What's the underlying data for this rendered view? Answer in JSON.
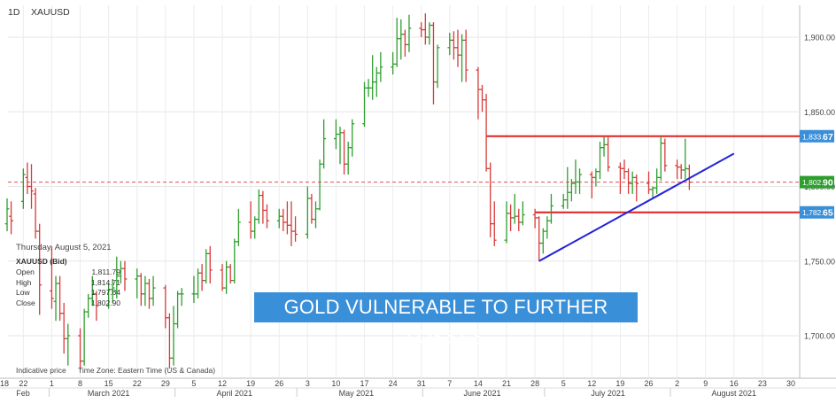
{
  "header": {
    "interval": "1D",
    "symbol": "XAUUSD"
  },
  "hover_info": {
    "date": "Thursday, August 5, 2021",
    "instrument": "XAUUSD (Bid)",
    "rows": [
      {
        "label": "Open",
        "value": "1,811.79"
      },
      {
        "label": "High",
        "value": "1,814.71"
      },
      {
        "label": "Low",
        "value": "1,797.64"
      },
      {
        "label": "Close",
        "value": "1,802.90"
      }
    ]
  },
  "footer": {
    "indicative": "Indicative price",
    "timezone": "Time Zone: Eastern Time (US & Canada)"
  },
  "banner": {
    "text": "GOLD VULNERABLE TO FURTHER LOSSES"
  },
  "colors": {
    "up": "#2e9e2e",
    "down": "#d83a3a",
    "resistance": "#e02020",
    "trendline": "#2323d8",
    "price_box": "#3a8fd9",
    "close_box": "#2e9e2e",
    "banner": "#3a8fd9"
  },
  "chart_data": {
    "type": "ohlc",
    "ylim": [
      1675,
      1925
    ],
    "y_ticks": [
      "1,700.00",
      "1,750.00",
      "1,800.00",
      "1,850.00",
      "1,900.00"
    ],
    "y_tick_values": [
      1700,
      1750,
      1800,
      1850,
      1900
    ],
    "x_day_labels": [
      "18",
      "22",
      "1",
      "8",
      "15",
      "22",
      "29",
      "5",
      "12",
      "19",
      "26",
      "3",
      "10",
      "17",
      "24",
      "31",
      "7",
      "14",
      "21",
      "28",
      "5",
      "12",
      "19",
      "26",
      "2",
      "9",
      "16",
      "23",
      "30"
    ],
    "x_month_labels": [
      "Feb",
      "March 2021",
      "April 2021",
      "May 2021",
      "June 2021",
      "July 2021",
      "August 2021"
    ],
    "price_labels": [
      {
        "main": "1,833.",
        "tail": "67",
        "value": 1833.67,
        "kind": "resistance"
      },
      {
        "main": "1,802.",
        "tail": "90",
        "value": 1802.9,
        "kind": "close"
      },
      {
        "main": "1,782.",
        "tail": "65",
        "value": 1782.65,
        "kind": "support"
      }
    ],
    "horizontal_levels": [
      1833.67,
      1782.65
    ],
    "current_close": 1802.9,
    "trendline": {
      "from": [
        "2021-06-29",
        1750
      ],
      "to": [
        "2021-08-16",
        1822
      ]
    },
    "bars": [
      {
        "date": "2021-02-18",
        "o": 1775,
        "h": 1792,
        "l": 1770,
        "c": 1785
      },
      {
        "date": "2021-02-19",
        "o": 1780,
        "h": 1790,
        "l": 1768,
        "c": 1777
      },
      {
        "date": "2021-02-22",
        "o": 1790,
        "h": 1812,
        "l": 1785,
        "c": 1808
      },
      {
        "date": "2021-02-23",
        "o": 1806,
        "h": 1816,
        "l": 1795,
        "c": 1800
      },
      {
        "date": "2021-02-24",
        "o": 1800,
        "h": 1815,
        "l": 1785,
        "c": 1797
      },
      {
        "date": "2021-02-25",
        "o": 1795,
        "h": 1799,
        "l": 1765,
        "c": 1770
      },
      {
        "date": "2021-02-26",
        "o": 1770,
        "h": 1775,
        "l": 1714,
        "c": 1734
      },
      {
        "date": "2021-03-01",
        "o": 1730,
        "h": 1760,
        "l": 1718,
        "c": 1725
      },
      {
        "date": "2021-03-02",
        "o": 1723,
        "h": 1740,
        "l": 1710,
        "c": 1735
      },
      {
        "date": "2021-03-03",
        "o": 1735,
        "h": 1740,
        "l": 1710,
        "c": 1715
      },
      {
        "date": "2021-03-04",
        "o": 1715,
        "h": 1722,
        "l": 1688,
        "c": 1698
      },
      {
        "date": "2021-03-05",
        "o": 1698,
        "h": 1708,
        "l": 1680,
        "c": 1700
      },
      {
        "date": "2021-03-08",
        "o": 1700,
        "h": 1705,
        "l": 1677,
        "c": 1683
      },
      {
        "date": "2021-03-09",
        "o": 1683,
        "h": 1718,
        "l": 1680,
        "c": 1716
      },
      {
        "date": "2021-03-10",
        "o": 1716,
        "h": 1728,
        "l": 1712,
        "c": 1725
      },
      {
        "date": "2021-03-11",
        "o": 1725,
        "h": 1740,
        "l": 1720,
        "c": 1728
      },
      {
        "date": "2021-03-12",
        "o": 1728,
        "h": 1730,
        "l": 1710,
        "c": 1720
      },
      {
        "date": "2021-03-15",
        "o": 1720,
        "h": 1735,
        "l": 1718,
        "c": 1731
      },
      {
        "date": "2021-03-16",
        "o": 1731,
        "h": 1738,
        "l": 1722,
        "c": 1732
      },
      {
        "date": "2021-03-17",
        "o": 1730,
        "h": 1753,
        "l": 1725,
        "c": 1740
      },
      {
        "date": "2021-03-18",
        "o": 1740,
        "h": 1750,
        "l": 1735,
        "c": 1745
      },
      {
        "date": "2021-03-19",
        "o": 1745,
        "h": 1750,
        "l": 1730,
        "c": 1738
      },
      {
        "date": "2021-03-22",
        "o": 1738,
        "h": 1745,
        "l": 1725,
        "c": 1740
      },
      {
        "date": "2021-03-23",
        "o": 1740,
        "h": 1742,
        "l": 1720,
        "c": 1728
      },
      {
        "date": "2021-03-24",
        "o": 1728,
        "h": 1740,
        "l": 1720,
        "c": 1735
      },
      {
        "date": "2021-03-25",
        "o": 1735,
        "h": 1738,
        "l": 1718,
        "c": 1725
      },
      {
        "date": "2021-03-26",
        "o": 1725,
        "h": 1740,
        "l": 1720,
        "c": 1732
      },
      {
        "date": "2021-03-29",
        "o": 1732,
        "h": 1734,
        "l": 1705,
        "c": 1712
      },
      {
        "date": "2021-03-30",
        "o": 1712,
        "h": 1715,
        "l": 1678,
        "c": 1685
      },
      {
        "date": "2021-03-31",
        "o": 1685,
        "h": 1720,
        "l": 1680,
        "c": 1708
      },
      {
        "date": "2021-04-01",
        "o": 1708,
        "h": 1730,
        "l": 1705,
        "c": 1728
      },
      {
        "date": "2021-04-02",
        "o": 1728,
        "h": 1732,
        "l": 1720,
        "c": 1728
      },
      {
        "date": "2021-04-05",
        "o": 1728,
        "h": 1740,
        "l": 1722,
        "c": 1728
      },
      {
        "date": "2021-04-06",
        "o": 1728,
        "h": 1745,
        "l": 1725,
        "c": 1742
      },
      {
        "date": "2021-04-07",
        "o": 1742,
        "h": 1748,
        "l": 1730,
        "c": 1737
      },
      {
        "date": "2021-04-08",
        "o": 1737,
        "h": 1758,
        "l": 1735,
        "c": 1755
      },
      {
        "date": "2021-04-09",
        "o": 1755,
        "h": 1760,
        "l": 1735,
        "c": 1744
      },
      {
        "date": "2021-04-12",
        "o": 1744,
        "h": 1748,
        "l": 1730,
        "c": 1732
      },
      {
        "date": "2021-04-13",
        "o": 1732,
        "h": 1750,
        "l": 1728,
        "c": 1746
      },
      {
        "date": "2021-04-14",
        "o": 1746,
        "h": 1748,
        "l": 1735,
        "c": 1737
      },
      {
        "date": "2021-04-15",
        "o": 1737,
        "h": 1765,
        "l": 1735,
        "c": 1763
      },
      {
        "date": "2021-04-16",
        "o": 1763,
        "h": 1785,
        "l": 1760,
        "c": 1776
      },
      {
        "date": "2021-04-19",
        "o": 1776,
        "h": 1790,
        "l": 1765,
        "c": 1770
      },
      {
        "date": "2021-04-20",
        "o": 1770,
        "h": 1780,
        "l": 1765,
        "c": 1778
      },
      {
        "date": "2021-04-21",
        "o": 1778,
        "h": 1798,
        "l": 1775,
        "c": 1794
      },
      {
        "date": "2021-04-22",
        "o": 1794,
        "h": 1797,
        "l": 1775,
        "c": 1784
      },
      {
        "date": "2021-04-23",
        "o": 1784,
        "h": 1788,
        "l": 1772,
        "c": 1777
      },
      {
        "date": "2021-04-26",
        "o": 1777,
        "h": 1785,
        "l": 1772,
        "c": 1780
      },
      {
        "date": "2021-04-27",
        "o": 1780,
        "h": 1785,
        "l": 1770,
        "c": 1776
      },
      {
        "date": "2021-04-28",
        "o": 1776,
        "h": 1790,
        "l": 1768,
        "c": 1774
      },
      {
        "date": "2021-04-29",
        "o": 1774,
        "h": 1790,
        "l": 1760,
        "c": 1770
      },
      {
        "date": "2021-04-30",
        "o": 1770,
        "h": 1780,
        "l": 1763,
        "c": 1768
      },
      {
        "date": "2021-05-03",
        "o": 1768,
        "h": 1800,
        "l": 1765,
        "c": 1792
      },
      {
        "date": "2021-05-04",
        "o": 1792,
        "h": 1795,
        "l": 1775,
        "c": 1778
      },
      {
        "date": "2021-05-05",
        "o": 1778,
        "h": 1790,
        "l": 1772,
        "c": 1785
      },
      {
        "date": "2021-05-06",
        "o": 1785,
        "h": 1818,
        "l": 1784,
        "c": 1815
      },
      {
        "date": "2021-05-07",
        "o": 1815,
        "h": 1845,
        "l": 1812,
        "c": 1832
      },
      {
        "date": "2021-05-10",
        "o": 1832,
        "h": 1845,
        "l": 1825,
        "c": 1835
      },
      {
        "date": "2021-05-11",
        "o": 1835,
        "h": 1840,
        "l": 1815,
        "c": 1836
      },
      {
        "date": "2021-05-12",
        "o": 1836,
        "h": 1838,
        "l": 1808,
        "c": 1815
      },
      {
        "date": "2021-05-13",
        "o": 1815,
        "h": 1830,
        "l": 1808,
        "c": 1826
      },
      {
        "date": "2021-05-14",
        "o": 1826,
        "h": 1845,
        "l": 1820,
        "c": 1842
      },
      {
        "date": "2021-05-17",
        "o": 1842,
        "h": 1870,
        "l": 1840,
        "c": 1866
      },
      {
        "date": "2021-05-18",
        "o": 1866,
        "h": 1872,
        "l": 1860,
        "c": 1866
      },
      {
        "date": "2021-05-19",
        "o": 1866,
        "h": 1888,
        "l": 1858,
        "c": 1870
      },
      {
        "date": "2021-05-20",
        "o": 1870,
        "h": 1880,
        "l": 1860,
        "c": 1876
      },
      {
        "date": "2021-05-21",
        "o": 1876,
        "h": 1890,
        "l": 1870,
        "c": 1880
      },
      {
        "date": "2021-05-24",
        "o": 1880,
        "h": 1890,
        "l": 1875,
        "c": 1882
      },
      {
        "date": "2021-05-25",
        "o": 1882,
        "h": 1913,
        "l": 1880,
        "c": 1899
      },
      {
        "date": "2021-05-26",
        "o": 1899,
        "h": 1912,
        "l": 1885,
        "c": 1902
      },
      {
        "date": "2021-05-27",
        "o": 1902,
        "h": 1905,
        "l": 1887,
        "c": 1895
      },
      {
        "date": "2021-05-28",
        "o": 1895,
        "h": 1915,
        "l": 1890,
        "c": 1906
      },
      {
        "date": "2021-05-31",
        "o": 1906,
        "h": 1910,
        "l": 1900,
        "c": 1905
      },
      {
        "date": "2021-06-01",
        "o": 1905,
        "h": 1916,
        "l": 1895,
        "c": 1900
      },
      {
        "date": "2021-06-02",
        "o": 1900,
        "h": 1910,
        "l": 1895,
        "c": 1908
      },
      {
        "date": "2021-06-03",
        "o": 1908,
        "h": 1910,
        "l": 1855,
        "c": 1870
      },
      {
        "date": "2021-06-04",
        "o": 1870,
        "h": 1895,
        "l": 1866,
        "c": 1893
      },
      {
        "date": "2021-06-07",
        "o": 1893,
        "h": 1903,
        "l": 1888,
        "c": 1898
      },
      {
        "date": "2021-06-08",
        "o": 1898,
        "h": 1904,
        "l": 1885,
        "c": 1893
      },
      {
        "date": "2021-06-09",
        "o": 1893,
        "h": 1905,
        "l": 1880,
        "c": 1888
      },
      {
        "date": "2021-06-10",
        "o": 1888,
        "h": 1902,
        "l": 1870,
        "c": 1898
      },
      {
        "date": "2021-06-11",
        "o": 1898,
        "h": 1905,
        "l": 1870,
        "c": 1878
      },
      {
        "date": "2021-06-14",
        "o": 1878,
        "h": 1880,
        "l": 1845,
        "c": 1865
      },
      {
        "date": "2021-06-15",
        "o": 1865,
        "h": 1868,
        "l": 1850,
        "c": 1858
      },
      {
        "date": "2021-06-16",
        "o": 1858,
        "h": 1862,
        "l": 1810,
        "c": 1812
      },
      {
        "date": "2021-06-17",
        "o": 1812,
        "h": 1816,
        "l": 1766,
        "c": 1775
      },
      {
        "date": "2021-06-18",
        "o": 1775,
        "h": 1790,
        "l": 1760,
        "c": 1764
      },
      {
        "date": "2021-06-21",
        "o": 1764,
        "h": 1790,
        "l": 1762,
        "c": 1782
      },
      {
        "date": "2021-06-22",
        "o": 1782,
        "h": 1788,
        "l": 1770,
        "c": 1779
      },
      {
        "date": "2021-06-23",
        "o": 1779,
        "h": 1795,
        "l": 1775,
        "c": 1780
      },
      {
        "date": "2021-06-24",
        "o": 1780,
        "h": 1785,
        "l": 1770,
        "c": 1776
      },
      {
        "date": "2021-06-25",
        "o": 1776,
        "h": 1790,
        "l": 1774,
        "c": 1781
      },
      {
        "date": "2021-06-28",
        "o": 1781,
        "h": 1785,
        "l": 1772,
        "c": 1779
      },
      {
        "date": "2021-06-29",
        "o": 1779,
        "h": 1780,
        "l": 1750,
        "c": 1762
      },
      {
        "date": "2021-06-30",
        "o": 1762,
        "h": 1772,
        "l": 1755,
        "c": 1770
      },
      {
        "date": "2021-07-01",
        "o": 1770,
        "h": 1780,
        "l": 1765,
        "c": 1777
      },
      {
        "date": "2021-07-02",
        "o": 1777,
        "h": 1795,
        "l": 1775,
        "c": 1787
      },
      {
        "date": "2021-07-05",
        "o": 1787,
        "h": 1795,
        "l": 1785,
        "c": 1791
      },
      {
        "date": "2021-07-06",
        "o": 1791,
        "h": 1813,
        "l": 1785,
        "c": 1796
      },
      {
        "date": "2021-07-07",
        "o": 1796,
        "h": 1805,
        "l": 1790,
        "c": 1802
      },
      {
        "date": "2021-07-08",
        "o": 1802,
        "h": 1818,
        "l": 1795,
        "c": 1803
      },
      {
        "date": "2021-07-09",
        "o": 1803,
        "h": 1812,
        "l": 1795,
        "c": 1808
      },
      {
        "date": "2021-07-12",
        "o": 1808,
        "h": 1810,
        "l": 1792,
        "c": 1806
      },
      {
        "date": "2021-07-13",
        "o": 1806,
        "h": 1812,
        "l": 1800,
        "c": 1810
      },
      {
        "date": "2021-07-14",
        "o": 1810,
        "h": 1830,
        "l": 1805,
        "c": 1826
      },
      {
        "date": "2021-07-15",
        "o": 1826,
        "h": 1833,
        "l": 1820,
        "c": 1828
      },
      {
        "date": "2021-07-16",
        "o": 1828,
        "h": 1833,
        "l": 1810,
        "c": 1813
      },
      {
        "date": "2021-07-19",
        "o": 1813,
        "h": 1816,
        "l": 1795,
        "c": 1812
      },
      {
        "date": "2021-07-20",
        "o": 1812,
        "h": 1818,
        "l": 1805,
        "c": 1810
      },
      {
        "date": "2021-07-21",
        "o": 1810,
        "h": 1812,
        "l": 1795,
        "c": 1802
      },
      {
        "date": "2021-07-22",
        "o": 1802,
        "h": 1810,
        "l": 1795,
        "c": 1806
      },
      {
        "date": "2021-07-23",
        "o": 1806,
        "h": 1808,
        "l": 1790,
        "c": 1802
      },
      {
        "date": "2021-07-26",
        "o": 1802,
        "h": 1810,
        "l": 1795,
        "c": 1798
      },
      {
        "date": "2021-07-27",
        "o": 1798,
        "h": 1800,
        "l": 1792,
        "c": 1799
      },
      {
        "date": "2021-07-28",
        "o": 1799,
        "h": 1812,
        "l": 1795,
        "c": 1806
      },
      {
        "date": "2021-07-29",
        "o": 1806,
        "h": 1833,
        "l": 1804,
        "c": 1829
      },
      {
        "date": "2021-07-30",
        "o": 1829,
        "h": 1832,
        "l": 1810,
        "c": 1814
      },
      {
        "date": "2021-08-02",
        "o": 1814,
        "h": 1818,
        "l": 1805,
        "c": 1813
      },
      {
        "date": "2021-08-03",
        "o": 1813,
        "h": 1815,
        "l": 1805,
        "c": 1811
      },
      {
        "date": "2021-08-04",
        "o": 1811,
        "h": 1832,
        "l": 1805,
        "c": 1812
      },
      {
        "date": "2021-08-05",
        "o": 1811.79,
        "h": 1814.71,
        "l": 1797.64,
        "c": 1802.9
      }
    ]
  }
}
